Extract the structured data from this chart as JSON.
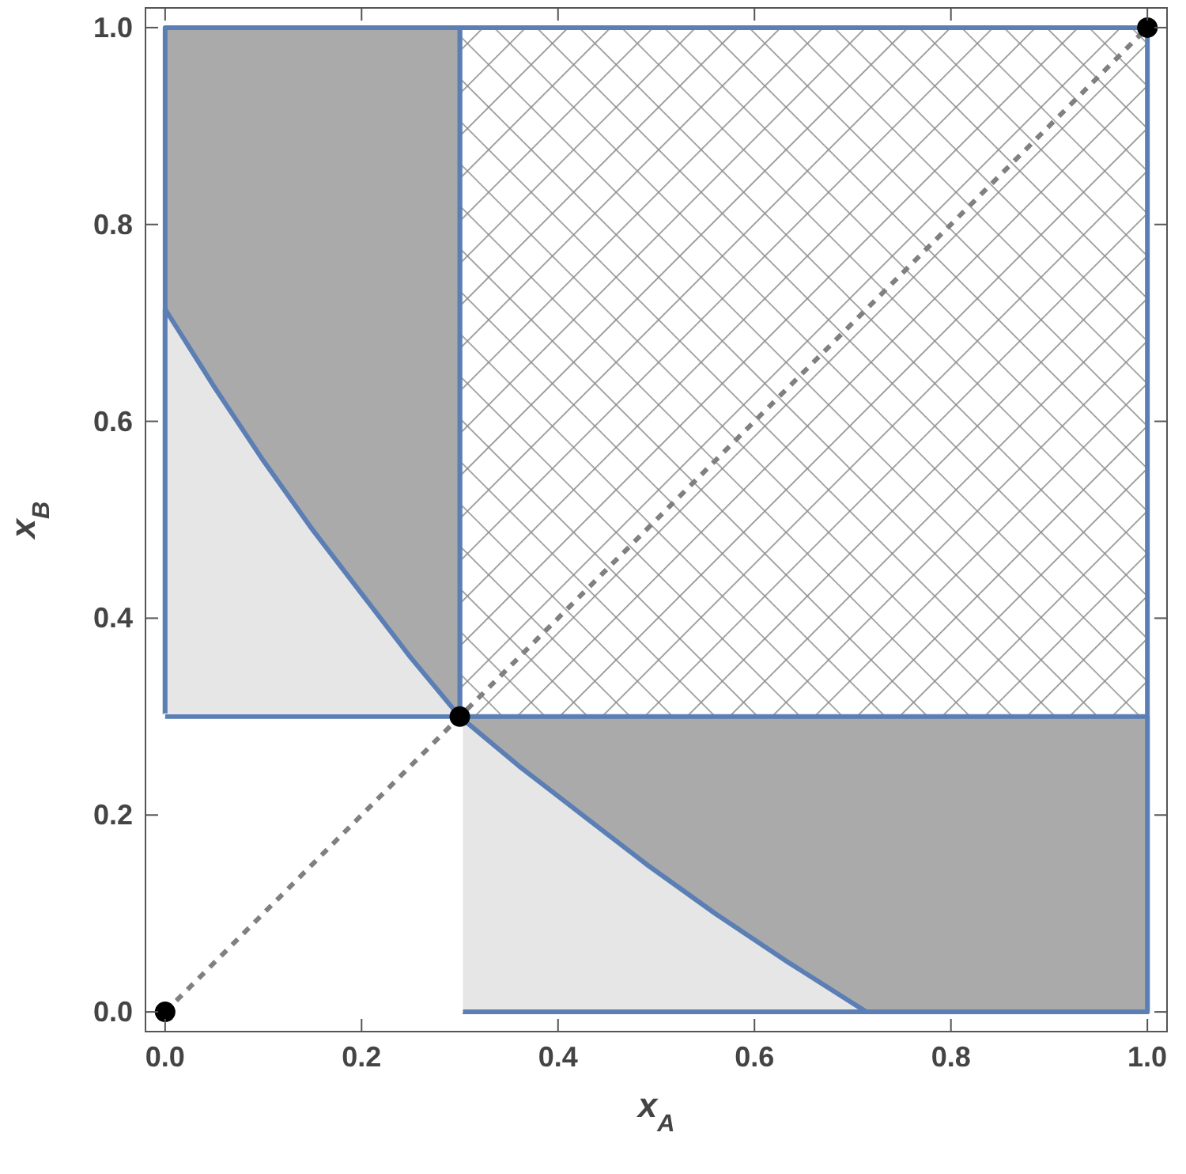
{
  "chart_data": {
    "type": "area",
    "xlabel": "x$_{A}$",
    "ylabel": "x$_{B}$",
    "xlim": [
      -0.02,
      1.02
    ],
    "ylim": [
      -0.02,
      1.02
    ],
    "xticks": [
      {
        "value": 0,
        "label": "0.0"
      },
      {
        "value": 0.2,
        "label": "0.2"
      },
      {
        "value": 0.4,
        "label": "0.4"
      },
      {
        "value": 0.6,
        "label": "0.6"
      },
      {
        "value": 0.8,
        "label": "0.8"
      },
      {
        "value": 1,
        "label": "1.0"
      }
    ],
    "yticks": [
      {
        "value": 0,
        "label": "0.0"
      },
      {
        "value": 0.2,
        "label": "0.2"
      },
      {
        "value": 0.4,
        "label": "0.4"
      },
      {
        "value": 0.6,
        "label": "0.6"
      },
      {
        "value": 0.8,
        "label": "0.8"
      },
      {
        "value": 1,
        "label": "1.0"
      }
    ],
    "grid": false,
    "series": [
      {
        "color": "#5b7fb5",
        "x": [
          0.3,
          1
        ],
        "values": [
          1,
          1
        ]
      },
      {
        "color": "#aaaaaa",
        "x": [
          0.3,
          1
        ],
        "values": [
          0.3,
          0.3
        ]
      },
      {
        "color": "#e6e6e6",
        "x": [
          0.3,
          0.36,
          0.425,
          0.49,
          0.56,
          0.635,
          0.714
        ],
        "values": [
          0.3,
          0.25,
          0.2,
          0.15,
          0.1,
          0.05,
          0
        ]
      },
      {
        "color": "#aaaaaa",
        "x": [
          0,
          0.3
        ],
        "values": [
          1,
          1
        ]
      },
      {
        "color": "#e6e6e6",
        "x": [
          0,
          0.05,
          0.1,
          0.15,
          0.2,
          0.25,
          0.3
        ],
        "values": [
          0.714,
          0.635,
          0.56,
          0.49,
          0.425,
          0.36,
          0.3
        ]
      },
      {
        "color": "#ffffff",
        "x": [
          0,
          0.3
        ],
        "values": [
          0.3,
          0.3
        ]
      },
      {
        "type": "line",
        "color": "#808080",
        "line_style": "dashed",
        "marker": "none",
        "x": [
          0,
          1
        ],
        "values": [
          0,
          1
        ]
      },
      {
        "type": "scatter",
        "color": "#000000",
        "marker": "circle",
        "x": [
          0,
          0.3,
          1
        ],
        "values": [
          0,
          0.3,
          1
        ]
      }
    ]
  }
}
